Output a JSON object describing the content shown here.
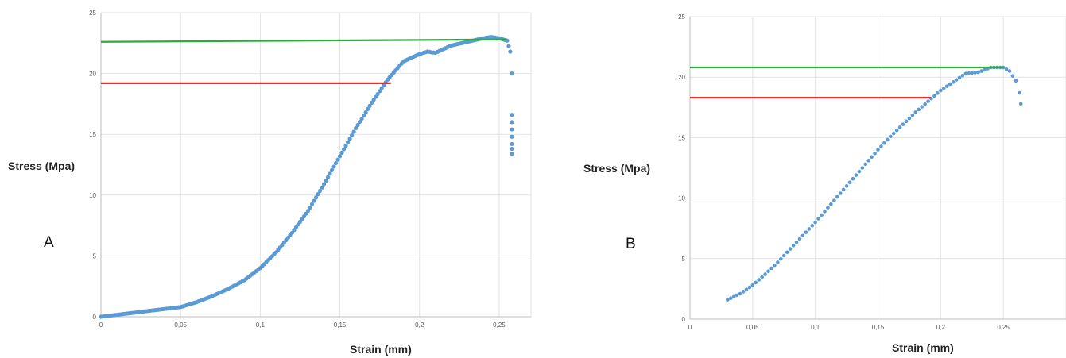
{
  "chart_data": [
    {
      "type": "scatter",
      "panel_label": "A",
      "xlabel": "Strain (mm)",
      "ylabel": "Stress (Mpa)",
      "xlim": [
        0,
        0.27
      ],
      "ylim": [
        0,
        25
      ],
      "x_ticks": [
        "0",
        "0,05",
        "0,1",
        "0,15",
        "0,2",
        "0,25"
      ],
      "y_ticks": [
        "0",
        "5",
        "10",
        "15",
        "20",
        "25"
      ],
      "grid": true,
      "point_color": "#5b9bd5",
      "series": [
        {
          "x": [
            0,
            0.05,
            0.06,
            0.07,
            0.08,
            0.09,
            0.1,
            0.11,
            0.12,
            0.13,
            0.14,
            0.15,
            0.16,
            0.17,
            0.18,
            0.19,
            0.2,
            0.205,
            0.21,
            0.22,
            0.23,
            0.24,
            0.245,
            0.25,
            0.255,
            0.257,
            0.258
          ],
          "y": [
            0,
            0.8,
            1.2,
            1.7,
            2.3,
            3.0,
            4.0,
            5.3,
            6.9,
            8.7,
            10.9,
            13.2,
            15.5,
            17.6,
            19.5,
            21.0,
            21.6,
            21.8,
            21.7,
            22.3,
            22.6,
            22.9,
            23.0,
            22.9,
            22.7,
            21.8,
            20.0
          ]
        },
        {
          "x": [
            0.258,
            0.258,
            0.258,
            0.258,
            0.258,
            0.258,
            0.258
          ],
          "y": [
            16.6,
            16.0,
            15.4,
            14.8,
            14.2,
            13.8,
            13.4
          ]
        }
      ],
      "reference_lines": [
        {
          "y": 19.2,
          "x_from": 0,
          "x_to": 0.182,
          "color": "#e0302e"
        },
        {
          "y1": 22.6,
          "y2": 22.8,
          "x_from": 0,
          "x_to": 0.255,
          "color": "#2eab3c"
        }
      ]
    },
    {
      "type": "scatter",
      "panel_label": "B",
      "xlabel": "Strain (mm)",
      "ylabel": "Stress (Mpa)",
      "xlim": [
        0,
        0.3
      ],
      "ylim": [
        0,
        25
      ],
      "x_ticks": [
        "0",
        "0,05",
        "0,1",
        "0,15",
        "0,2",
        "0,25"
      ],
      "y_ticks": [
        "0",
        "5",
        "10",
        "15",
        "20",
        "25"
      ],
      "grid": true,
      "point_color": "#5b9bd5",
      "series": [
        {
          "x": [
            0.03,
            0.04,
            0.05,
            0.06,
            0.07,
            0.08,
            0.09,
            0.1,
            0.11,
            0.12,
            0.13,
            0.14,
            0.15,
            0.16,
            0.17,
            0.18,
            0.19,
            0.2,
            0.21,
            0.22,
            0.23,
            0.24,
            0.25,
            0.255,
            0.26,
            0.263,
            0.264
          ],
          "y": [
            1.6,
            2.1,
            2.8,
            3.7,
            4.7,
            5.8,
            6.9,
            8.0,
            9.2,
            10.4,
            11.6,
            12.8,
            14.0,
            15.1,
            16.1,
            17.1,
            18.0,
            18.9,
            19.6,
            20.3,
            20.4,
            20.8,
            20.8,
            20.5,
            19.7,
            18.7,
            17.8
          ]
        }
      ],
      "reference_lines": [
        {
          "y": 18.3,
          "x_from": 0,
          "x_to": 0.192,
          "color": "#e0302e"
        },
        {
          "y": 20.8,
          "x_from": 0,
          "x_to": 0.25,
          "color": "#2eab3c"
        }
      ]
    }
  ]
}
